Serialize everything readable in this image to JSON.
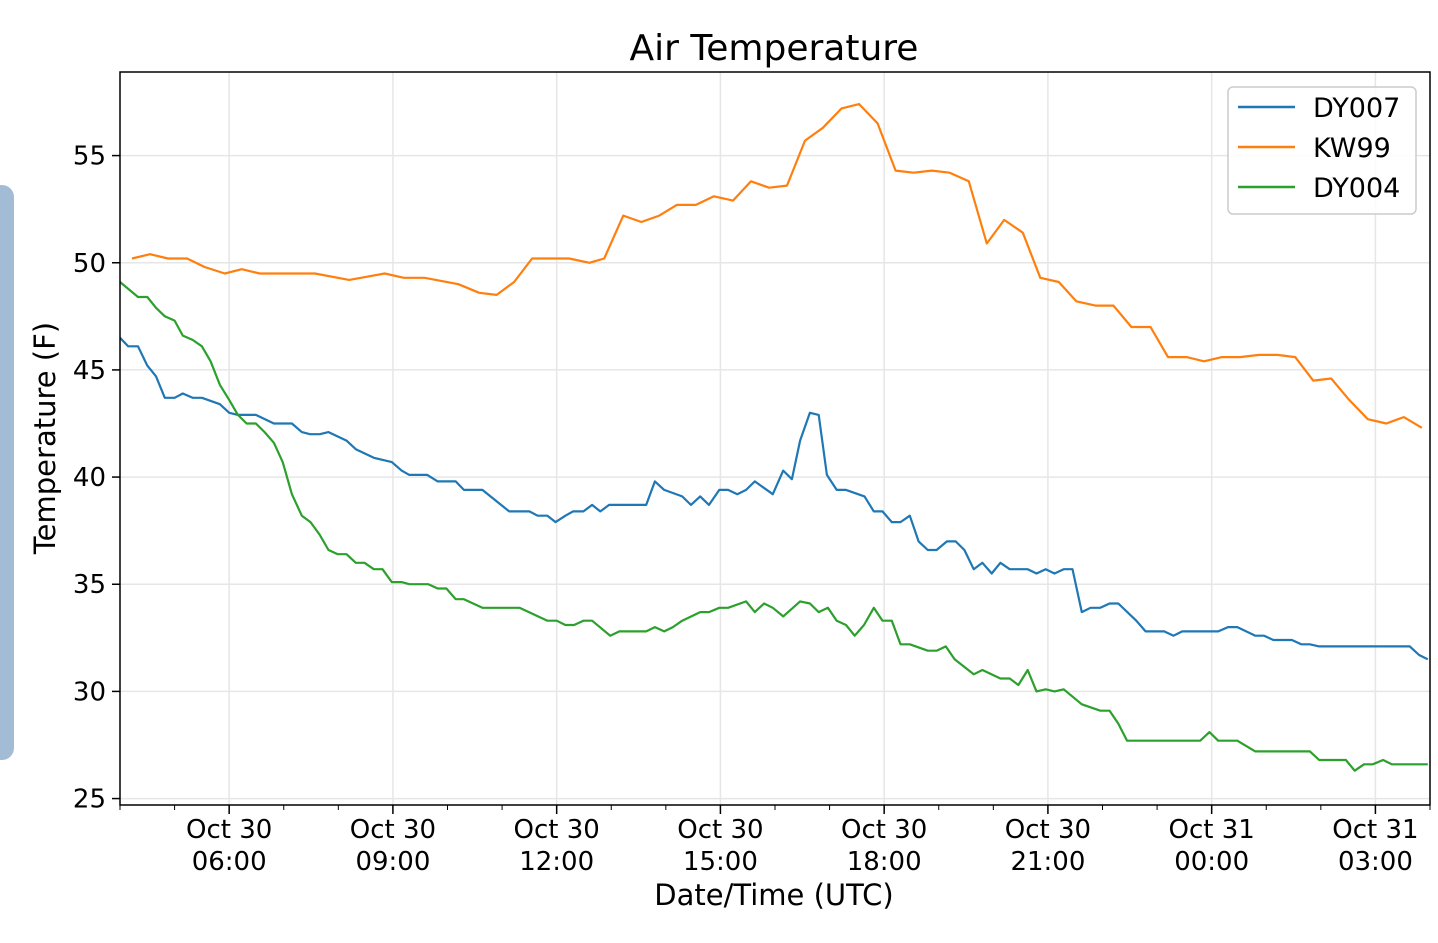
{
  "chart_data": {
    "type": "line",
    "title": "Air Temperature",
    "xlabel": "Date/Time (UTC)",
    "ylabel": "Temperature (F)",
    "x_units": "hours since Oct 30 00:00 UTC",
    "xlim": [
      4.0,
      28.0
    ],
    "ylim": [
      24.7,
      58.9
    ],
    "grid": true,
    "legend_position": "top-right",
    "yticks": [
      25,
      30,
      35,
      40,
      45,
      50,
      55
    ],
    "xticks": [
      {
        "value": 6,
        "label": [
          "Oct 30",
          "06:00"
        ]
      },
      {
        "value": 9,
        "label": [
          "Oct 30",
          "09:00"
        ]
      },
      {
        "value": 12,
        "label": [
          "Oct 30",
          "12:00"
        ]
      },
      {
        "value": 15,
        "label": [
          "Oct 30",
          "15:00"
        ]
      },
      {
        "value": 18,
        "label": [
          "Oct 30",
          "18:00"
        ]
      },
      {
        "value": 21,
        "label": [
          "Oct 30",
          "21:00"
        ]
      },
      {
        "value": 24,
        "label": [
          "Oct 31",
          "00:00"
        ]
      },
      {
        "value": 27,
        "label": [
          "Oct 31",
          "03:00"
        ]
      }
    ],
    "series": [
      {
        "name": "DY007",
        "color": "#1f77b4",
        "points": [
          [
            4.0,
            46.5
          ],
          [
            4.15,
            46.1
          ],
          [
            4.33,
            46.1
          ],
          [
            4.5,
            45.2
          ],
          [
            4.66,
            44.7
          ],
          [
            4.82,
            43.7
          ],
          [
            5.0,
            43.7
          ],
          [
            5.15,
            43.9
          ],
          [
            5.33,
            43.7
          ],
          [
            5.5,
            43.7
          ],
          [
            5.83,
            43.4
          ],
          [
            6.0,
            43.0
          ],
          [
            6.16,
            42.9
          ],
          [
            6.49,
            42.9
          ],
          [
            6.82,
            42.5
          ],
          [
            7.15,
            42.5
          ],
          [
            7.33,
            42.1
          ],
          [
            7.48,
            42.0
          ],
          [
            7.66,
            42.0
          ],
          [
            7.82,
            42.1
          ],
          [
            8.15,
            41.7
          ],
          [
            8.32,
            41.3
          ],
          [
            8.65,
            40.9
          ],
          [
            8.98,
            40.7
          ],
          [
            9.16,
            40.3
          ],
          [
            9.3,
            40.1
          ],
          [
            9.63,
            40.1
          ],
          [
            9.82,
            39.8
          ],
          [
            10.15,
            39.8
          ],
          [
            10.3,
            39.4
          ],
          [
            10.64,
            39.4
          ],
          [
            11.13,
            38.4
          ],
          [
            11.5,
            38.4
          ],
          [
            11.65,
            38.2
          ],
          [
            11.83,
            38.2
          ],
          [
            11.98,
            37.9
          ],
          [
            12.16,
            38.2
          ],
          [
            12.3,
            38.4
          ],
          [
            12.49,
            38.4
          ],
          [
            12.65,
            38.7
          ],
          [
            12.8,
            38.4
          ],
          [
            12.96,
            38.7
          ],
          [
            13.64,
            38.7
          ],
          [
            13.8,
            39.8
          ],
          [
            13.97,
            39.4
          ],
          [
            14.3,
            39.1
          ],
          [
            14.46,
            38.7
          ],
          [
            14.63,
            39.1
          ],
          [
            14.79,
            38.7
          ],
          [
            14.98,
            39.4
          ],
          [
            15.14,
            39.4
          ],
          [
            15.31,
            39.2
          ],
          [
            15.47,
            39.4
          ],
          [
            15.63,
            39.8
          ],
          [
            15.96,
            39.2
          ],
          [
            16.15,
            40.3
          ],
          [
            16.31,
            39.9
          ],
          [
            16.46,
            41.7
          ],
          [
            16.64,
            43.0
          ],
          [
            16.8,
            42.9
          ],
          [
            16.95,
            40.1
          ],
          [
            17.13,
            39.4
          ],
          [
            17.3,
            39.4
          ],
          [
            17.64,
            39.1
          ],
          [
            17.81,
            38.4
          ],
          [
            17.97,
            38.4
          ],
          [
            18.14,
            37.9
          ],
          [
            18.3,
            37.9
          ],
          [
            18.47,
            38.2
          ],
          [
            18.63,
            37.0
          ],
          [
            18.8,
            36.6
          ],
          [
            18.96,
            36.6
          ],
          [
            19.15,
            37.0
          ],
          [
            19.31,
            37.0
          ],
          [
            19.47,
            36.6
          ],
          [
            19.64,
            35.7
          ],
          [
            19.8,
            36.0
          ],
          [
            19.97,
            35.5
          ],
          [
            20.13,
            36.0
          ],
          [
            20.3,
            35.7
          ],
          [
            20.63,
            35.7
          ],
          [
            20.79,
            35.5
          ],
          [
            20.96,
            35.7
          ],
          [
            21.12,
            35.5
          ],
          [
            21.29,
            35.7
          ],
          [
            21.45,
            35.7
          ],
          [
            21.62,
            33.7
          ],
          [
            21.78,
            33.9
          ],
          [
            21.96,
            33.9
          ],
          [
            22.13,
            34.1
          ],
          [
            22.29,
            34.1
          ],
          [
            22.62,
            33.3
          ],
          [
            22.79,
            32.8
          ],
          [
            23.13,
            32.8
          ],
          [
            23.3,
            32.6
          ],
          [
            23.46,
            32.8
          ],
          [
            24.12,
            32.8
          ],
          [
            24.3,
            33.0
          ],
          [
            24.47,
            33.0
          ],
          [
            24.8,
            32.6
          ],
          [
            24.96,
            32.6
          ],
          [
            25.13,
            32.4
          ],
          [
            25.47,
            32.4
          ],
          [
            25.64,
            32.2
          ],
          [
            25.8,
            32.2
          ],
          [
            25.97,
            32.1
          ],
          [
            27.63,
            32.1
          ],
          [
            27.8,
            31.7
          ],
          [
            27.96,
            31.5
          ]
        ]
      },
      {
        "name": "KW99",
        "color": "#ff7f0e",
        "points": [
          [
            4.22,
            50.2
          ],
          [
            4.55,
            50.4
          ],
          [
            4.88,
            50.2
          ],
          [
            5.23,
            50.2
          ],
          [
            5.55,
            49.8
          ],
          [
            5.92,
            49.5
          ],
          [
            6.23,
            49.7
          ],
          [
            6.56,
            49.5
          ],
          [
            7.57,
            49.5
          ],
          [
            8.2,
            49.2
          ],
          [
            8.85,
            49.5
          ],
          [
            9.2,
            49.3
          ],
          [
            9.58,
            49.3
          ],
          [
            10.2,
            49.0
          ],
          [
            10.58,
            48.6
          ],
          [
            10.9,
            48.5
          ],
          [
            11.22,
            49.1
          ],
          [
            11.55,
            50.2
          ],
          [
            12.23,
            50.2
          ],
          [
            12.6,
            50.0
          ],
          [
            12.87,
            50.2
          ],
          [
            13.22,
            52.2
          ],
          [
            13.55,
            51.9
          ],
          [
            13.88,
            52.2
          ],
          [
            14.2,
            52.7
          ],
          [
            14.55,
            52.7
          ],
          [
            14.88,
            53.1
          ],
          [
            15.23,
            52.9
          ],
          [
            15.56,
            53.8
          ],
          [
            15.89,
            53.5
          ],
          [
            16.22,
            53.6
          ],
          [
            16.55,
            55.7
          ],
          [
            16.88,
            56.3
          ],
          [
            17.22,
            57.2
          ],
          [
            17.54,
            57.4
          ],
          [
            17.88,
            56.5
          ],
          [
            18.21,
            54.3
          ],
          [
            18.54,
            54.2
          ],
          [
            18.87,
            54.3
          ],
          [
            19.2,
            54.2
          ],
          [
            19.55,
            53.8
          ],
          [
            19.88,
            50.9
          ],
          [
            20.2,
            52.0
          ],
          [
            20.54,
            51.4
          ],
          [
            20.86,
            49.3
          ],
          [
            21.2,
            49.1
          ],
          [
            21.52,
            48.2
          ],
          [
            21.87,
            48.0
          ],
          [
            22.2,
            48.0
          ],
          [
            22.53,
            47.0
          ],
          [
            22.88,
            47.0
          ],
          [
            23.2,
            45.6
          ],
          [
            23.54,
            45.6
          ],
          [
            23.86,
            45.4
          ],
          [
            24.19,
            45.6
          ],
          [
            24.52,
            45.6
          ],
          [
            24.87,
            45.7
          ],
          [
            25.2,
            45.7
          ],
          [
            25.53,
            45.6
          ],
          [
            25.86,
            44.5
          ],
          [
            26.19,
            44.6
          ],
          [
            26.52,
            43.6
          ],
          [
            26.86,
            42.7
          ],
          [
            27.2,
            42.5
          ],
          [
            27.52,
            42.8
          ],
          [
            27.85,
            42.3
          ]
        ]
      },
      {
        "name": "DY004",
        "color": "#2ca02c",
        "points": [
          [
            4.0,
            49.1
          ],
          [
            4.33,
            48.4
          ],
          [
            4.5,
            48.4
          ],
          [
            4.66,
            47.9
          ],
          [
            4.82,
            47.5
          ],
          [
            5.0,
            47.3
          ],
          [
            5.15,
            46.6
          ],
          [
            5.33,
            46.4
          ],
          [
            5.5,
            46.1
          ],
          [
            5.66,
            45.4
          ],
          [
            5.83,
            44.3
          ],
          [
            6.0,
            43.6
          ],
          [
            6.16,
            42.9
          ],
          [
            6.32,
            42.5
          ],
          [
            6.49,
            42.5
          ],
          [
            6.65,
            42.1
          ],
          [
            6.82,
            41.6
          ],
          [
            6.98,
            40.7
          ],
          [
            7.15,
            39.2
          ],
          [
            7.33,
            38.2
          ],
          [
            7.49,
            37.9
          ],
          [
            7.66,
            37.3
          ],
          [
            7.82,
            36.6
          ],
          [
            7.99,
            36.4
          ],
          [
            8.15,
            36.4
          ],
          [
            8.32,
            36.0
          ],
          [
            8.48,
            36.0
          ],
          [
            8.65,
            35.7
          ],
          [
            8.81,
            35.7
          ],
          [
            8.98,
            35.1
          ],
          [
            9.16,
            35.1
          ],
          [
            9.3,
            35.0
          ],
          [
            9.65,
            35.0
          ],
          [
            9.82,
            34.8
          ],
          [
            9.98,
            34.8
          ],
          [
            10.15,
            34.3
          ],
          [
            10.3,
            34.3
          ],
          [
            10.64,
            33.9
          ],
          [
            11.32,
            33.9
          ],
          [
            11.83,
            33.3
          ],
          [
            12.0,
            33.3
          ],
          [
            12.16,
            33.1
          ],
          [
            12.32,
            33.1
          ],
          [
            12.49,
            33.3
          ],
          [
            12.65,
            33.3
          ],
          [
            12.98,
            32.6
          ],
          [
            13.15,
            32.8
          ],
          [
            13.64,
            32.8
          ],
          [
            13.8,
            33.0
          ],
          [
            13.97,
            32.8
          ],
          [
            14.13,
            33.0
          ],
          [
            14.3,
            33.3
          ],
          [
            14.63,
            33.7
          ],
          [
            14.79,
            33.7
          ],
          [
            14.98,
            33.9
          ],
          [
            15.14,
            33.9
          ],
          [
            15.47,
            34.2
          ],
          [
            15.63,
            33.7
          ],
          [
            15.8,
            34.1
          ],
          [
            15.96,
            33.9
          ],
          [
            16.15,
            33.5
          ],
          [
            16.46,
            34.2
          ],
          [
            16.64,
            34.1
          ],
          [
            16.8,
            33.7
          ],
          [
            16.97,
            33.9
          ],
          [
            17.13,
            33.3
          ],
          [
            17.3,
            33.1
          ],
          [
            17.46,
            32.6
          ],
          [
            17.63,
            33.1
          ],
          [
            17.81,
            33.9
          ],
          [
            17.97,
            33.3
          ],
          [
            18.14,
            33.3
          ],
          [
            18.3,
            32.2
          ],
          [
            18.47,
            32.2
          ],
          [
            18.8,
            31.9
          ],
          [
            18.96,
            31.9
          ],
          [
            19.13,
            32.1
          ],
          [
            19.29,
            31.5
          ],
          [
            19.64,
            30.8
          ],
          [
            19.8,
            31.0
          ],
          [
            20.13,
            30.6
          ],
          [
            20.3,
            30.6
          ],
          [
            20.46,
            30.3
          ],
          [
            20.63,
            31.0
          ],
          [
            20.79,
            30.0
          ],
          [
            20.96,
            30.1
          ],
          [
            21.12,
            30.0
          ],
          [
            21.29,
            30.1
          ],
          [
            21.62,
            29.4
          ],
          [
            21.96,
            29.1
          ],
          [
            22.13,
            29.1
          ],
          [
            22.29,
            28.5
          ],
          [
            22.45,
            27.7
          ],
          [
            23.79,
            27.7
          ],
          [
            23.96,
            28.1
          ],
          [
            24.12,
            27.7
          ],
          [
            24.47,
            27.7
          ],
          [
            24.8,
            27.2
          ],
          [
            25.8,
            27.2
          ],
          [
            25.97,
            26.8
          ],
          [
            26.46,
            26.8
          ],
          [
            26.62,
            26.3
          ],
          [
            26.79,
            26.6
          ],
          [
            26.95,
            26.6
          ],
          [
            27.14,
            26.8
          ],
          [
            27.3,
            26.6
          ],
          [
            27.96,
            26.6
          ]
        ]
      }
    ]
  }
}
